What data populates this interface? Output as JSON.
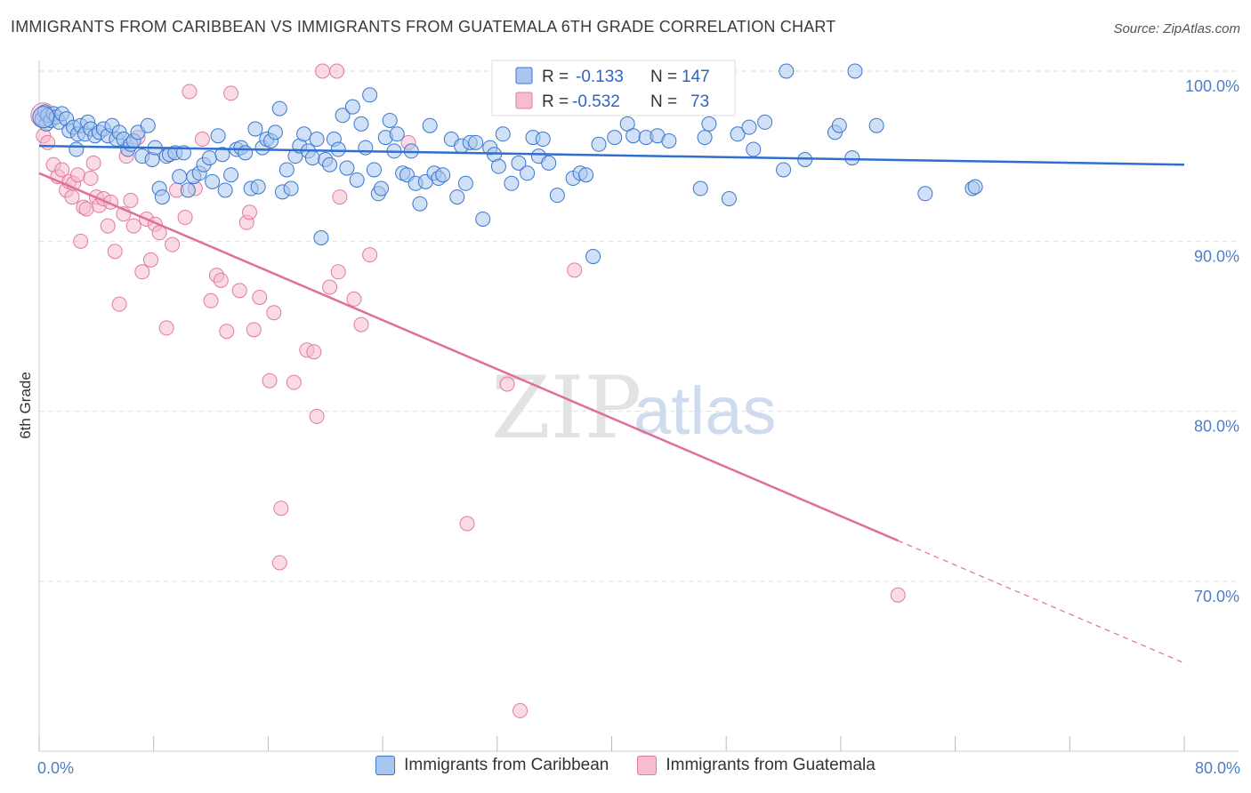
{
  "title": "IMMIGRANTS FROM CARIBBEAN VS IMMIGRANTS FROM GUATEMALA 6TH GRADE CORRELATION CHART",
  "source": "Source: ZipAtlas.com",
  "watermark": {
    "zip": "ZIP",
    "atlas": "atlas"
  },
  "colors": {
    "caribbean_fill": "#a9c6ef",
    "caribbean_stroke": "#3a76cf",
    "caribbean_line": "#2f6fd1",
    "guatemala_fill": "#f6bcd0",
    "guatemala_stroke": "#e07ba0",
    "guatemala_line": "#e0709a",
    "tick_text": "#4f7dc9",
    "grid": "#dddddd"
  },
  "stats": {
    "row1": {
      "r_label": "R =",
      "r_value": "-0.133",
      "n_label": "N =",
      "n_value": "147"
    },
    "row2": {
      "r_label": "R =",
      "r_value": "-0.532",
      "n_label": "N =",
      "n_value": "73"
    }
  },
  "legend": {
    "caribbean": "Immigrants from Caribbean",
    "guatemala": "Immigrants from Guatemala"
  },
  "chart_data": {
    "type": "scatter",
    "title": "IMMIGRANTS FROM CARIBBEAN VS IMMIGRANTS FROM GUATEMALA 6TH GRADE CORRELATION CHART",
    "xlabel": "",
    "ylabel": "6th Grade",
    "xlim": [
      0,
      80
    ],
    "ylim": [
      60.5,
      101.5
    ],
    "x_tick_labels": {
      "left": "0.0%",
      "right": "80.0%"
    },
    "y_ticks": [
      100,
      90,
      80,
      70
    ],
    "y_tick_labels": [
      "100.0%",
      "90.0%",
      "80.0%",
      "70.0%"
    ],
    "grid": true,
    "legend_position": "bottom",
    "series": [
      {
        "name": "Immigrants from Caribbean",
        "r": -0.133,
        "n": 147,
        "trend": {
          "x": [
            0,
            80
          ],
          "y": [
            95.6,
            94.5
          ]
        },
        "points": [
          [
            0.2,
            97.2
          ],
          [
            0.4,
            97.6
          ],
          [
            0.5,
            96.9
          ],
          [
            0.6,
            97.4
          ],
          [
            0.8,
            97.1
          ],
          [
            1.0,
            97.5
          ],
          [
            1.2,
            97.3
          ],
          [
            1.4,
            97.0
          ],
          [
            1.6,
            97.5
          ],
          [
            1.9,
            97.2
          ],
          [
            2.1,
            96.5
          ],
          [
            2.4,
            96.7
          ],
          [
            2.6,
            95.4
          ],
          [
            2.7,
            96.3
          ],
          [
            2.9,
            96.8
          ],
          [
            3.2,
            96.3
          ],
          [
            3.4,
            97.0
          ],
          [
            3.6,
            96.6
          ],
          [
            3.9,
            96.2
          ],
          [
            4.2,
            96.4
          ],
          [
            4.5,
            96.6
          ],
          [
            4.8,
            96.2
          ],
          [
            5.1,
            96.8
          ],
          [
            5.4,
            96.0
          ],
          [
            5.6,
            96.4
          ],
          [
            5.9,
            96.0
          ],
          [
            6.2,
            95.4
          ],
          [
            6.4,
            95.7
          ],
          [
            6.6,
            95.9
          ],
          [
            6.9,
            96.4
          ],
          [
            7.2,
            95.0
          ],
          [
            7.6,
            96.8
          ],
          [
            7.9,
            94.8
          ],
          [
            8.1,
            95.5
          ],
          [
            8.4,
            93.1
          ],
          [
            8.6,
            92.6
          ],
          [
            8.9,
            95.0
          ],
          [
            9.1,
            95.1
          ],
          [
            9.5,
            95.2
          ],
          [
            9.8,
            93.8
          ],
          [
            10.1,
            95.2
          ],
          [
            10.4,
            93.0
          ],
          [
            10.8,
            93.8
          ],
          [
            11.2,
            94.0
          ],
          [
            11.5,
            94.5
          ],
          [
            11.9,
            94.9
          ],
          [
            12.1,
            93.5
          ],
          [
            12.5,
            96.2
          ],
          [
            12.8,
            95.1
          ],
          [
            13.0,
            93.0
          ],
          [
            13.4,
            93.9
          ],
          [
            13.8,
            95.4
          ],
          [
            14.1,
            95.5
          ],
          [
            14.4,
            95.2
          ],
          [
            14.8,
            93.1
          ],
          [
            15.1,
            96.6
          ],
          [
            15.3,
            93.2
          ],
          [
            15.6,
            95.5
          ],
          [
            15.9,
            96.0
          ],
          [
            16.2,
            95.9
          ],
          [
            16.5,
            96.4
          ],
          [
            16.8,
            97.8
          ],
          [
            17.0,
            92.9
          ],
          [
            17.3,
            94.2
          ],
          [
            17.6,
            93.1
          ],
          [
            17.9,
            95.0
          ],
          [
            18.2,
            95.6
          ],
          [
            18.5,
            96.3
          ],
          [
            18.8,
            95.3
          ],
          [
            19.1,
            94.9
          ],
          [
            19.4,
            96.0
          ],
          [
            19.7,
            90.2
          ],
          [
            20.0,
            94.8
          ],
          [
            20.3,
            94.5
          ],
          [
            20.6,
            96.0
          ],
          [
            20.9,
            95.4
          ],
          [
            21.2,
            97.4
          ],
          [
            21.5,
            94.3
          ],
          [
            21.9,
            97.9
          ],
          [
            22.2,
            93.6
          ],
          [
            22.5,
            96.9
          ],
          [
            22.8,
            95.5
          ],
          [
            23.1,
            98.6
          ],
          [
            23.4,
            94.2
          ],
          [
            23.7,
            92.8
          ],
          [
            23.9,
            93.1
          ],
          [
            24.2,
            96.1
          ],
          [
            24.5,
            97.1
          ],
          [
            24.8,
            95.3
          ],
          [
            25.0,
            96.3
          ],
          [
            25.4,
            94.0
          ],
          [
            25.7,
            93.9
          ],
          [
            26.0,
            95.3
          ],
          [
            26.3,
            93.4
          ],
          [
            26.6,
            92.2
          ],
          [
            27.0,
            93.5
          ],
          [
            27.3,
            96.8
          ],
          [
            27.6,
            94.0
          ],
          [
            27.9,
            93.7
          ],
          [
            28.2,
            93.9
          ],
          [
            28.8,
            96.0
          ],
          [
            29.2,
            92.6
          ],
          [
            29.5,
            95.6
          ],
          [
            29.8,
            93.4
          ],
          [
            30.1,
            95.8
          ],
          [
            30.5,
            95.8
          ],
          [
            31.0,
            91.3
          ],
          [
            31.5,
            95.5
          ],
          [
            31.8,
            95.1
          ],
          [
            32.1,
            94.4
          ],
          [
            32.4,
            96.3
          ],
          [
            33.0,
            93.4
          ],
          [
            33.5,
            94.6
          ],
          [
            34.1,
            94.0
          ],
          [
            34.5,
            96.1
          ],
          [
            34.9,
            95.0
          ],
          [
            35.2,
            96.0
          ],
          [
            35.6,
            94.6
          ],
          [
            36.2,
            92.7
          ],
          [
            37.3,
            93.7
          ],
          [
            37.8,
            94.0
          ],
          [
            38.2,
            93.9
          ],
          [
            38.7,
            89.1
          ],
          [
            39.1,
            95.7
          ],
          [
            40.2,
            96.1
          ],
          [
            41.1,
            96.9
          ],
          [
            41.5,
            96.2
          ],
          [
            42.4,
            96.1
          ],
          [
            43.2,
            96.2
          ],
          [
            44.0,
            95.9
          ],
          [
            46.2,
            93.1
          ],
          [
            46.5,
            96.1
          ],
          [
            46.8,
            96.9
          ],
          [
            48.2,
            92.5
          ],
          [
            48.8,
            96.3
          ],
          [
            49.6,
            96.7
          ],
          [
            49.9,
            95.4
          ],
          [
            50.7,
            97.0
          ],
          [
            52.0,
            94.2
          ],
          [
            52.2,
            100.0
          ],
          [
            53.5,
            94.8
          ],
          [
            55.6,
            96.4
          ],
          [
            55.9,
            96.8
          ],
          [
            57.0,
            100.0
          ],
          [
            56.8,
            94.9
          ],
          [
            58.5,
            96.8
          ],
          [
            61.9,
            92.8
          ],
          [
            65.2,
            93.1
          ],
          [
            65.4,
            93.2
          ]
        ]
      },
      {
        "name": "Immigrants from Guatemala",
        "r": -0.532,
        "n": 73,
        "trend": {
          "x": [
            0,
            80
          ],
          "y": [
            94.0,
            65.2
          ],
          "solid_until_x": 60
        },
        "points": [
          [
            0.2,
            97.5
          ],
          [
            0.3,
            96.2
          ],
          [
            0.6,
            95.8
          ],
          [
            1.0,
            94.5
          ],
          [
            1.3,
            93.8
          ],
          [
            1.6,
            94.2
          ],
          [
            1.9,
            93.0
          ],
          [
            2.1,
            93.5
          ],
          [
            2.3,
            92.6
          ],
          [
            2.4,
            93.4
          ],
          [
            2.7,
            93.9
          ],
          [
            2.9,
            90.0
          ],
          [
            3.1,
            92.0
          ],
          [
            3.3,
            91.9
          ],
          [
            3.6,
            93.7
          ],
          [
            3.8,
            94.6
          ],
          [
            4.0,
            92.6
          ],
          [
            4.2,
            92.1
          ],
          [
            4.5,
            92.5
          ],
          [
            4.8,
            90.9
          ],
          [
            5.0,
            92.3
          ],
          [
            5.3,
            89.4
          ],
          [
            5.6,
            86.3
          ],
          [
            5.9,
            91.6
          ],
          [
            6.1,
            95.0
          ],
          [
            6.4,
            92.4
          ],
          [
            6.6,
            90.9
          ],
          [
            6.9,
            96.1
          ],
          [
            7.2,
            88.2
          ],
          [
            7.5,
            91.3
          ],
          [
            7.8,
            88.9
          ],
          [
            8.1,
            91.0
          ],
          [
            8.4,
            90.5
          ],
          [
            8.9,
            84.9
          ],
          [
            9.3,
            89.8
          ],
          [
            9.6,
            93.0
          ],
          [
            10.2,
            91.4
          ],
          [
            10.5,
            98.8
          ],
          [
            10.9,
            93.1
          ],
          [
            11.4,
            96.0
          ],
          [
            12.0,
            86.5
          ],
          [
            12.4,
            88.0
          ],
          [
            12.7,
            87.7
          ],
          [
            13.1,
            84.7
          ],
          [
            13.4,
            98.7
          ],
          [
            14.0,
            87.1
          ],
          [
            14.5,
            91.1
          ],
          [
            14.7,
            91.7
          ],
          [
            15.0,
            84.8
          ],
          [
            15.4,
            86.7
          ],
          [
            16.1,
            81.8
          ],
          [
            16.4,
            85.8
          ],
          [
            16.9,
            74.3
          ],
          [
            16.8,
            71.1
          ],
          [
            17.8,
            81.7
          ],
          [
            18.7,
            83.6
          ],
          [
            19.2,
            83.5
          ],
          [
            19.4,
            79.7
          ],
          [
            19.8,
            100.0
          ],
          [
            20.3,
            87.3
          ],
          [
            20.8,
            100.0
          ],
          [
            20.9,
            88.2
          ],
          [
            21.0,
            92.6
          ],
          [
            22.0,
            86.6
          ],
          [
            22.5,
            85.1
          ],
          [
            23.1,
            89.2
          ],
          [
            25.8,
            95.8
          ],
          [
            29.9,
            73.4
          ],
          [
            32.7,
            81.6
          ],
          [
            33.6,
            62.4
          ],
          [
            37.4,
            88.3
          ],
          [
            37.9,
            100.0
          ],
          [
            60.0,
            69.2
          ]
        ]
      }
    ]
  }
}
